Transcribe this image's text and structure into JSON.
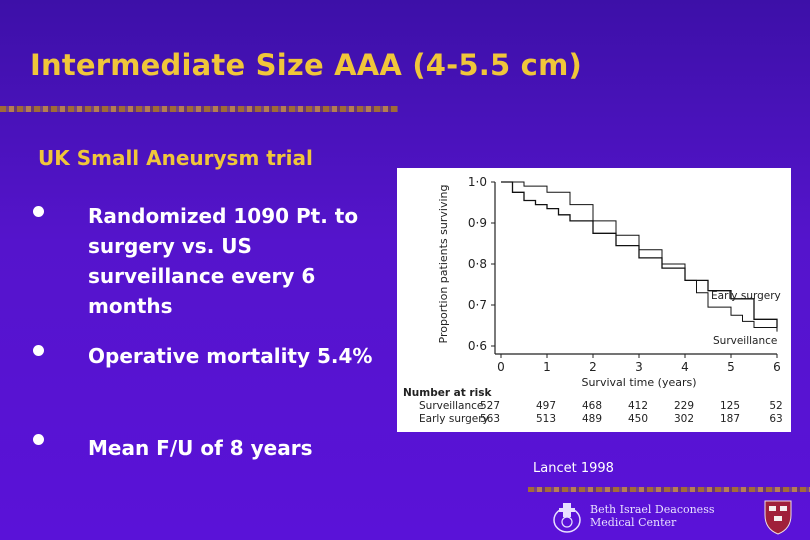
{
  "slide": {
    "title": "Intermediate Size AAA (4-5.5 cm)",
    "subtitle": "UK Small Aneurysm trial",
    "bullets": [
      "Randomized 1090 Pt. to surgery vs. US surveillance every 6 months",
      "Operative mortality 5.4%",
      "Mean F/U of 8 years"
    ],
    "citation": "Lancet 1998",
    "logo": {
      "line1": "Beth Israel Deaconess",
      "line2": "Medical Center"
    }
  },
  "chart_data": {
    "type": "line",
    "xlabel": "Survival time (years)",
    "ylabel": "Proportion patients surviving",
    "xlim": [
      0,
      6
    ],
    "ylim": [
      0.6,
      1.0
    ],
    "x_ticks": [
      "0",
      "1",
      "2",
      "3",
      "4",
      "5",
      "6"
    ],
    "y_ticks": [
      "0·6",
      "0·7",
      "0·8",
      "0·9",
      "1·0"
    ],
    "series": [
      {
        "name": "Early surgery",
        "x": [
          0,
          0.25,
          0.5,
          0.75,
          1.0,
          1.25,
          1.5,
          2.0,
          2.5,
          3.0,
          3.5,
          4.0,
          4.5,
          5.0,
          5.5,
          6.0
        ],
        "y": [
          1.0,
          0.975,
          0.955,
          0.945,
          0.935,
          0.92,
          0.905,
          0.875,
          0.845,
          0.815,
          0.79,
          0.76,
          0.735,
          0.715,
          0.665,
          0.645
        ]
      },
      {
        "name": "Surveillance",
        "x": [
          0,
          0.5,
          1.0,
          1.5,
          2.0,
          2.5,
          3.0,
          3.5,
          4.0,
          4.25,
          4.5,
          5.0,
          5.25,
          5.5,
          6.0
        ],
        "y": [
          1.0,
          0.99,
          0.975,
          0.945,
          0.905,
          0.87,
          0.835,
          0.8,
          0.76,
          0.73,
          0.695,
          0.675,
          0.66,
          0.645,
          0.635
        ]
      }
    ],
    "risk_table": {
      "header": "Number at risk",
      "rows": [
        {
          "label": "Surveillance",
          "values": [
            "527",
            "497",
            "468",
            "412",
            "229",
            "125",
            "52"
          ]
        },
        {
          "label": "Early surgery",
          "values": [
            "563",
            "513",
            "489",
            "450",
            "302",
            "187",
            "63"
          ]
        }
      ]
    }
  }
}
